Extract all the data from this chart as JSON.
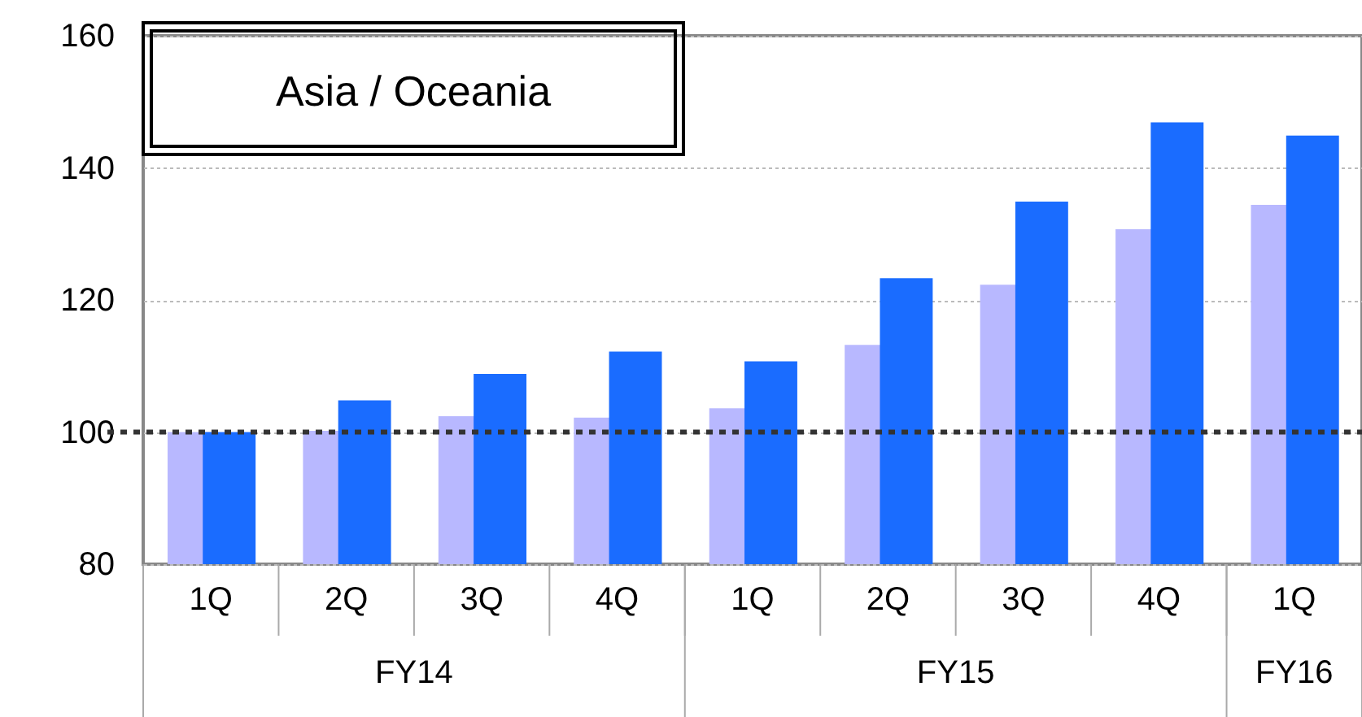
{
  "chart_data": {
    "type": "bar",
    "title": "Asia / Oceania",
    "categories": [
      "1Q",
      "2Q",
      "3Q",
      "4Q",
      "1Q",
      "2Q",
      "3Q",
      "4Q",
      "1Q"
    ],
    "series": [
      {
        "color": "#b8b8ff",
        "values": [
          100,
          100.2,
          102.4,
          102.2,
          103.6,
          113.2,
          122.3,
          130.7,
          134.4
        ]
      },
      {
        "color": "#1a6cff",
        "values": [
          100,
          104.8,
          108.8,
          112.2,
          110.7,
          123.3,
          134.9,
          146.9,
          144.9
        ]
      }
    ],
    "annotations": [
      "FY14",
      "FY15",
      "FY16"
    ],
    "ylim": [
      80,
      160
    ],
    "yticks": [
      80,
      100,
      120,
      140,
      160
    ],
    "grid": "y",
    "ref_lines": [
      {
        "axis": "y",
        "value": 100,
        "color": "#333333",
        "line_style": "dotted"
      }
    ]
  }
}
